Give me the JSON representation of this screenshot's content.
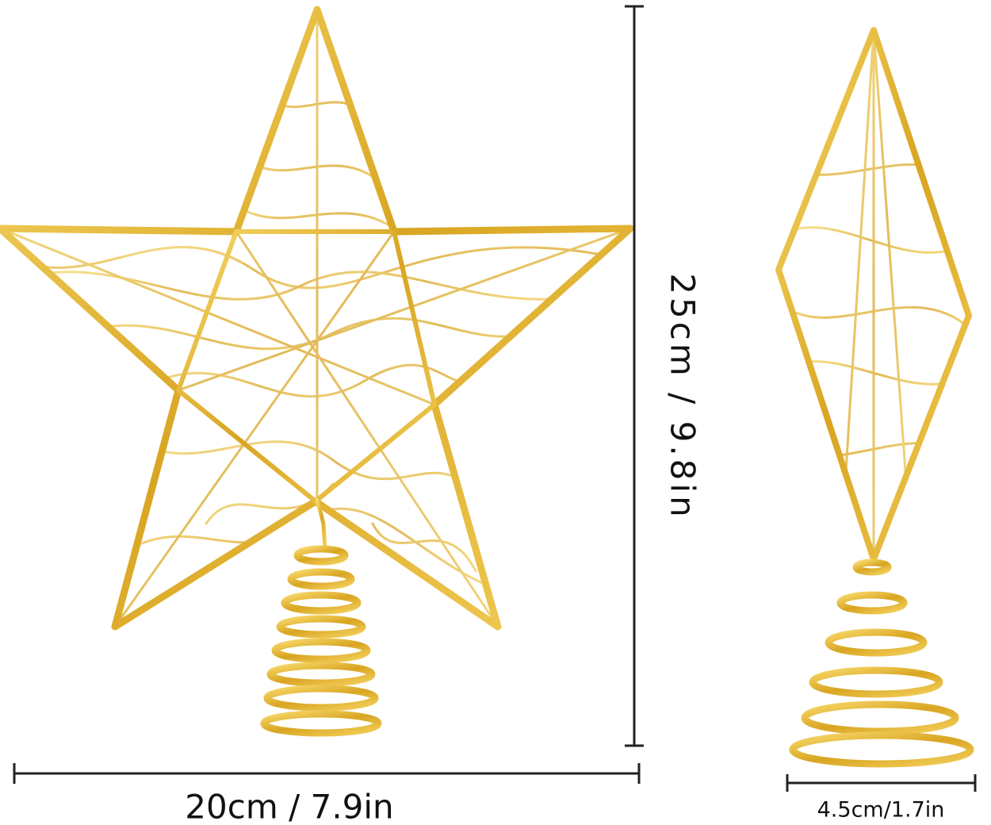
{
  "labels": {
    "height": "25cm / 9.8in",
    "width": "20cm / 7.9in",
    "side_width": "4.5cm/1.7in"
  }
}
